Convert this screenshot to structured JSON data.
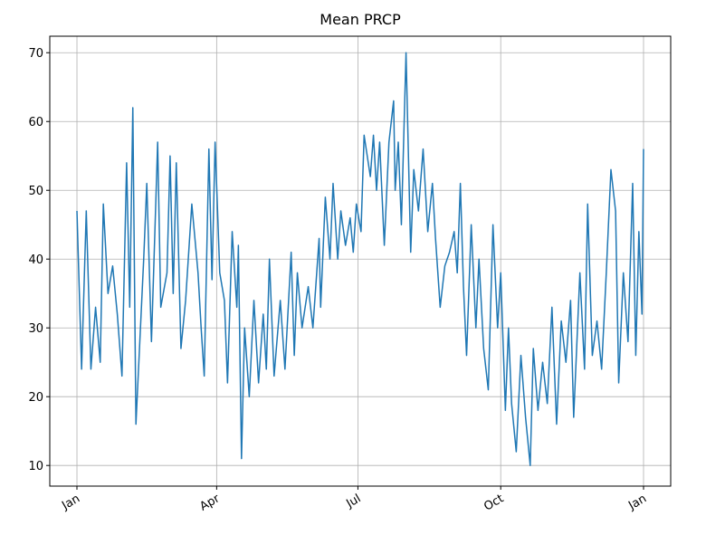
{
  "chart_data": {
    "type": "line",
    "title": "Mean PRCP",
    "x": [
      0,
      3,
      6,
      9,
      12,
      15,
      17,
      20,
      23,
      26,
      29,
      32,
      34,
      36,
      38,
      43,
      45,
      48,
      52,
      54,
      58,
      60,
      62,
      64,
      67,
      70,
      74,
      78,
      80,
      82,
      85,
      87,
      89,
      92,
      95,
      97,
      100,
      103,
      104,
      106,
      108,
      111,
      114,
      117,
      120,
      122,
      124,
      127,
      131,
      134,
      138,
      140,
      142,
      145,
      149,
      152,
      156,
      157,
      160,
      163,
      165,
      168,
      170,
      173,
      176,
      178,
      180,
      183,
      185,
      189,
      191,
      193,
      195,
      198,
      201,
      204,
      205,
      207,
      209,
      212,
      215,
      217,
      220,
      223,
      226,
      229,
      231,
      234,
      237,
      240,
      243,
      245,
      247,
      249,
      251,
      254,
      257,
      259,
      262,
      265,
      268,
      271,
      273,
      276,
      278,
      280,
      283,
      286,
      289,
      292,
      294,
      297,
      300,
      303,
      306,
      309,
      312,
      315,
      318,
      320,
      324,
      327,
      329,
      332,
      335,
      338,
      341,
      344,
      347,
      349,
      352,
      355,
      358,
      360,
      362,
      364,
      365
    ],
    "series": [
      {
        "name": "Mean PRCP",
        "color": "#1f77b4",
        "values": [
          47,
          24,
          47,
          24,
          33,
          25,
          48,
          35,
          39,
          32,
          23,
          54,
          33,
          62,
          16,
          40,
          51,
          28,
          57,
          33,
          38,
          55,
          35,
          54,
          27,
          34,
          48,
          38,
          30,
          23,
          56,
          37,
          57,
          38,
          34,
          22,
          44,
          33,
          42,
          11,
          30,
          20,
          34,
          22,
          32,
          24,
          40,
          23,
          34,
          24,
          41,
          26,
          38,
          30,
          36,
          30,
          43,
          33,
          49,
          40,
          51,
          40,
          47,
          42,
          46,
          41,
          48,
          44,
          58,
          52,
          58,
          50,
          57,
          42,
          57,
          63,
          50,
          57,
          45,
          70,
          41,
          53,
          47,
          56,
          44,
          51,
          43,
          33,
          39,
          41,
          44,
          38,
          51,
          36,
          26,
          45,
          30,
          40,
          27,
          21,
          45,
          30,
          38,
          18,
          30,
          19,
          12,
          26,
          17,
          10,
          27,
          18,
          25,
          19,
          33,
          16,
          31,
          25,
          34,
          17,
          38,
          24,
          48,
          26,
          31,
          24,
          38,
          53,
          47,
          22,
          38,
          28,
          51,
          26,
          44,
          32,
          56
        ]
      }
    ],
    "xlim": [
      -17.5,
      382.5
    ],
    "xticks": [
      {
        "value": 0,
        "label": "Jan"
      },
      {
        "value": 90,
        "label": "Apr"
      },
      {
        "value": 181,
        "label": "Jul"
      },
      {
        "value": 273,
        "label": "Oct"
      },
      {
        "value": 365,
        "label": "Jan"
      }
    ],
    "ylim": [
      7,
      72.4
    ],
    "yticks": [
      10,
      20,
      30,
      40,
      50,
      60,
      70
    ],
    "grid": true
  }
}
